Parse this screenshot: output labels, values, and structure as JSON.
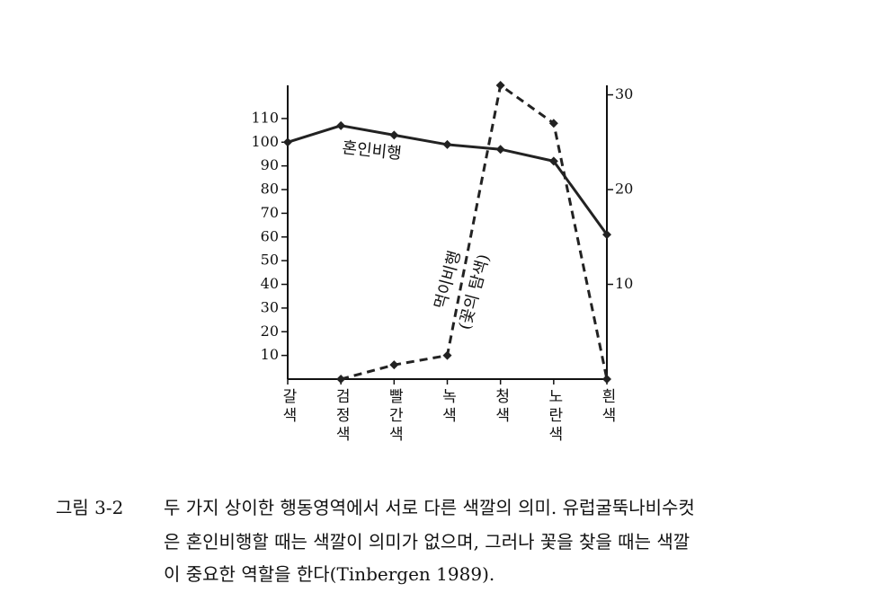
{
  "chart_data": {
    "type": "line",
    "categories": [
      "갈색",
      "검정색",
      "빨간색",
      "녹색",
      "청색",
      "노란색",
      "흰색"
    ],
    "series": [
      {
        "name": "혼인비행",
        "color": "#222222",
        "values": [
          100,
          107,
          103,
          99,
          97,
          92,
          61
        ]
      },
      {
        "name": "먹이비행",
        "color": "#222222",
        "axis": "y2",
        "values": [
          null,
          0,
          1.5,
          2.5,
          31,
          27,
          0
        ]
      }
    ],
    "annotation": "(꽃의 탐색)",
    "ylim": [
      0,
      124
    ],
    "yticks": [
      10,
      20,
      30,
      40,
      50,
      60,
      70,
      80,
      90,
      100,
      110
    ],
    "y2lim": [
      0,
      31
    ],
    "y2ticks": [
      10,
      20,
      30
    ]
  },
  "caption": {
    "label": "그림 3-2",
    "lines": [
      "두 가지 상이한 행동영역에서 서로 다른 색깔의 의미. 유럽굴뚝나비수컷",
      "은 혼인비행할 때는 색깔이 의미가 없으며, 그러나 꽃을 찾을 때는 색깔",
      "이 중요한 역할을 한다(Tinbergen 1989)."
    ]
  }
}
